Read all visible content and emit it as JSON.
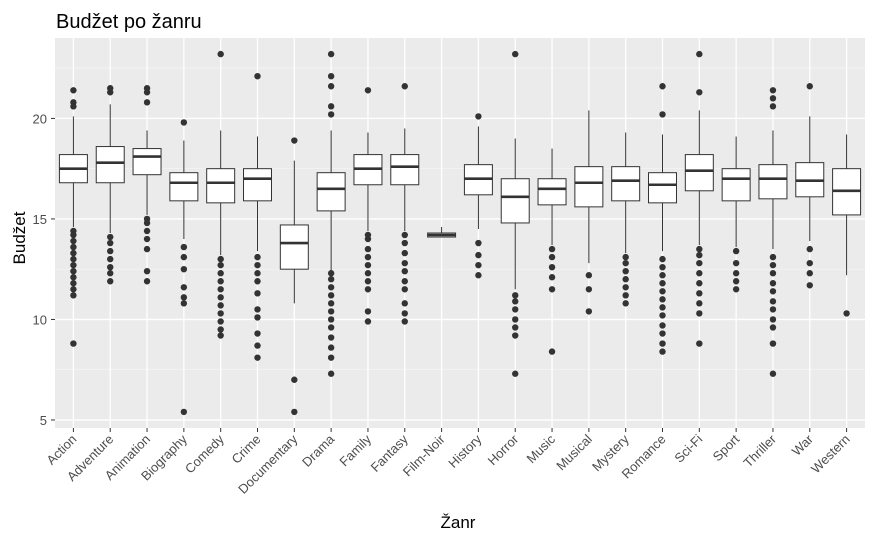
{
  "chart_data": {
    "type": "boxplot",
    "title": "Budžet po žanru",
    "xlabel": "Žanr",
    "ylabel": "Budžet",
    "ylim": [
      4.6,
      24.0
    ],
    "yticks": [
      5,
      10,
      15,
      20
    ],
    "grid": true,
    "legend": "none",
    "colors": {
      "panel": "#ebebeb",
      "grid_major": "#ffffff",
      "grid_minor": "#f5f5f5",
      "box_fill": "#ffffff",
      "box_stroke": "#333333",
      "outlier": "#333333",
      "tick_text": "#4d4d4d",
      "title_text": "#000000"
    },
    "categories": [
      "Action",
      "Adventure",
      "Animation",
      "Biography",
      "Comedy",
      "Crime",
      "Documentary",
      "Drama",
      "Family",
      "Fantasy",
      "Film-Noir",
      "History",
      "Horror",
      "Music",
      "Musical",
      "Mystery",
      "Romance",
      "Sci-Fi",
      "Sport",
      "Thriller",
      "War",
      "Western"
    ],
    "boxes": [
      {
        "min": 14.6,
        "q1": 16.8,
        "median": 17.5,
        "q3": 18.2,
        "max": 20.1,
        "outliers": [
          8.8,
          11.2,
          11.5,
          11.8,
          12.1,
          12.4,
          12.7,
          13.0,
          13.3,
          13.6,
          13.9,
          14.2,
          14.4,
          20.6,
          20.8,
          21.4
        ]
      },
      {
        "min": 14.3,
        "q1": 16.8,
        "median": 17.8,
        "q3": 18.6,
        "max": 20.7,
        "outliers": [
          11.9,
          12.3,
          12.6,
          13.0,
          13.4,
          13.8,
          14.1,
          21.3,
          21.5
        ]
      },
      {
        "min": 15.2,
        "q1": 17.2,
        "median": 18.1,
        "q3": 18.5,
        "max": 19.4,
        "outliers": [
          11.9,
          12.4,
          13.5,
          14.0,
          14.4,
          14.8,
          15.0,
          20.8,
          21.3,
          21.5
        ]
      },
      {
        "min": 14.0,
        "q1": 15.9,
        "median": 16.8,
        "q3": 17.3,
        "max": 18.9,
        "outliers": [
          5.4,
          10.8,
          11.1,
          11.6,
          12.5,
          13.1,
          13.6,
          19.8
        ]
      },
      {
        "min": 13.2,
        "q1": 15.8,
        "median": 16.8,
        "q3": 17.5,
        "max": 19.4,
        "outliers": [
          9.2,
          9.5,
          9.9,
          10.3,
          10.7,
          11.1,
          11.5,
          11.9,
          12.3,
          12.7,
          13.0,
          23.2
        ]
      },
      {
        "min": 13.4,
        "q1": 15.9,
        "median": 17.0,
        "q3": 17.5,
        "max": 19.1,
        "outliers": [
          8.1,
          8.7,
          9.3,
          10.1,
          10.5,
          11.3,
          11.9,
          12.3,
          12.7,
          13.1,
          22.1
        ]
      },
      {
        "min": 10.8,
        "q1": 12.5,
        "median": 13.8,
        "q3": 14.7,
        "max": 17.9,
        "outliers": [
          5.4,
          7.0,
          18.9
        ]
      },
      {
        "min": 12.4,
        "q1": 15.4,
        "median": 16.5,
        "q3": 17.3,
        "max": 19.4,
        "outliers": [
          7.3,
          8.1,
          8.6,
          9.1,
          9.6,
          10.0,
          10.4,
          10.8,
          11.2,
          11.6,
          12.0,
          12.3,
          20.2,
          20.6,
          21.6,
          22.1,
          23.2
        ]
      },
      {
        "min": 14.4,
        "q1": 16.7,
        "median": 17.5,
        "q3": 18.2,
        "max": 19.3,
        "outliers": [
          9.9,
          10.4,
          11.5,
          11.9,
          12.3,
          12.7,
          13.1,
          13.5,
          14.0,
          14.2,
          21.4
        ]
      },
      {
        "min": 14.4,
        "q1": 16.7,
        "median": 17.6,
        "q3": 18.2,
        "max": 19.5,
        "outliers": [
          9.9,
          10.3,
          10.8,
          11.5,
          11.9,
          12.4,
          12.8,
          13.3,
          13.8,
          14.2,
          21.6
        ]
      },
      {
        "min": 14.1,
        "q1": 14.1,
        "median": 14.2,
        "q3": 14.3,
        "max": 14.6,
        "outliers": []
      },
      {
        "min": 14.5,
        "q1": 16.2,
        "median": 17.0,
        "q3": 17.7,
        "max": 19.6,
        "outliers": [
          12.2,
          12.7,
          13.2,
          13.8,
          20.1
        ]
      },
      {
        "min": 11.5,
        "q1": 14.8,
        "median": 16.1,
        "q3": 17.0,
        "max": 19.0,
        "outliers": [
          7.3,
          9.2,
          9.6,
          10.0,
          10.5,
          10.9,
          11.2,
          23.2
        ]
      },
      {
        "min": 13.7,
        "q1": 15.7,
        "median": 16.5,
        "q3": 17.0,
        "max": 18.5,
        "outliers": [
          8.4,
          11.5,
          12.1,
          12.6,
          13.1,
          13.5
        ]
      },
      {
        "min": 12.8,
        "q1": 15.6,
        "median": 16.8,
        "q3": 17.6,
        "max": 20.4,
        "outliers": [
          10.4,
          11.5,
          12.2
        ]
      },
      {
        "min": 13.3,
        "q1": 15.9,
        "median": 16.9,
        "q3": 17.6,
        "max": 19.3,
        "outliers": [
          10.8,
          11.2,
          11.6,
          12.0,
          12.4,
          12.8,
          13.1
        ]
      },
      {
        "min": 13.4,
        "q1": 15.8,
        "median": 16.7,
        "q3": 17.3,
        "max": 19.2,
        "outliers": [
          8.4,
          8.8,
          9.3,
          9.7,
          10.2,
          10.6,
          11.0,
          11.4,
          11.8,
          12.2,
          12.6,
          13.0,
          20.2,
          21.6
        ]
      },
      {
        "min": 13.7,
        "q1": 16.4,
        "median": 17.4,
        "q3": 18.2,
        "max": 20.4,
        "outliers": [
          8.8,
          10.3,
          10.8,
          11.3,
          11.8,
          12.3,
          12.8,
          13.2,
          13.5,
          21.3,
          23.2
        ]
      },
      {
        "min": 13.6,
        "q1": 15.9,
        "median": 17.0,
        "q3": 17.5,
        "max": 19.1,
        "outliers": [
          11.5,
          11.9,
          12.3,
          12.8,
          13.4
        ]
      },
      {
        "min": 13.5,
        "q1": 16.0,
        "median": 17.0,
        "q3": 17.7,
        "max": 19.4,
        "outliers": [
          7.3,
          8.8,
          9.6,
          10.0,
          10.5,
          10.9,
          11.4,
          11.8,
          12.3,
          12.7,
          13.1,
          20.6,
          21.0,
          21.4
        ]
      },
      {
        "min": 13.9,
        "q1": 16.1,
        "median": 16.9,
        "q3": 17.8,
        "max": 20.1,
        "outliers": [
          11.7,
          12.3,
          12.8,
          13.5,
          21.6
        ]
      },
      {
        "min": 12.2,
        "q1": 15.2,
        "median": 16.4,
        "q3": 17.5,
        "max": 19.2,
        "outliers": [
          10.3
        ]
      }
    ]
  }
}
